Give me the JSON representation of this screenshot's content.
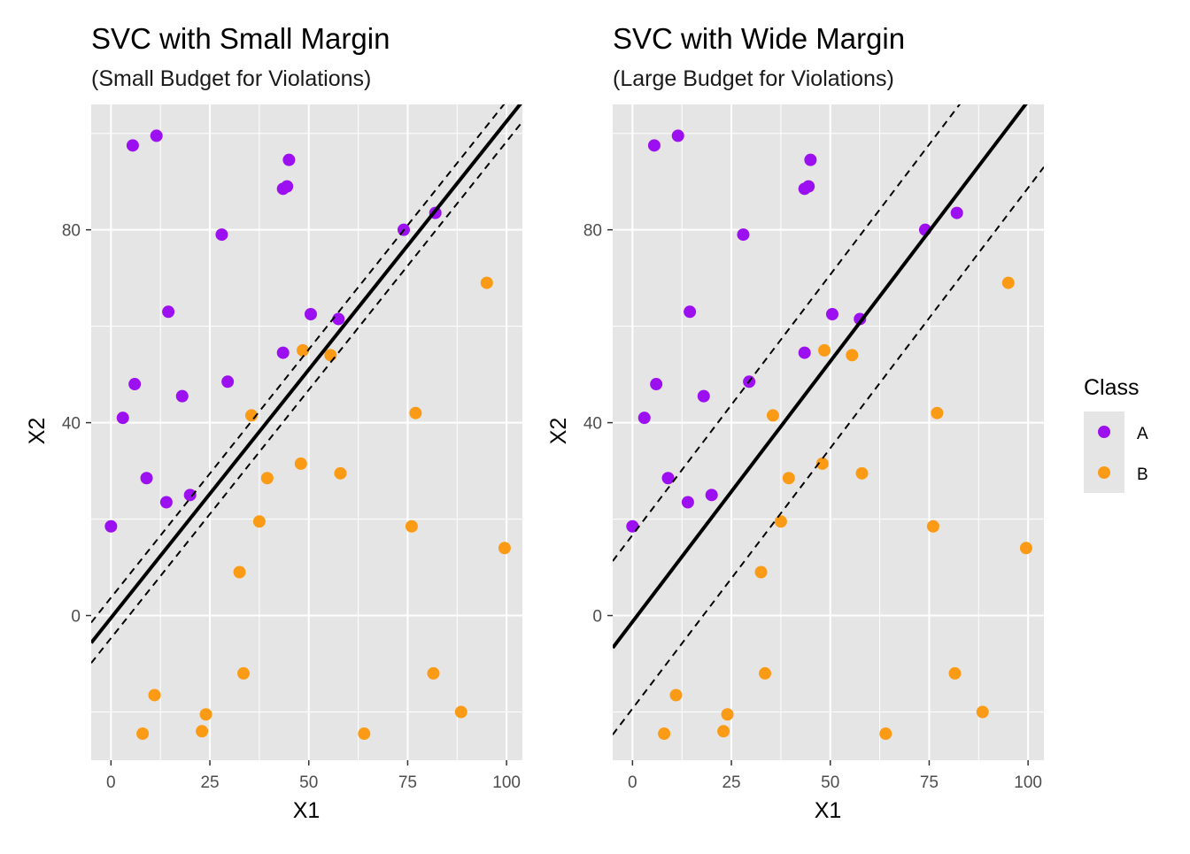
{
  "colors": {
    "panel_bg": "#e5e5e5",
    "grid": "#ffffff",
    "class_A": "#9b0ff0",
    "class_B": "#fb9b15",
    "hyperplane": "#000000",
    "legend_key_bg": "#e5e5e5"
  },
  "legend": {
    "title": "Class",
    "items": [
      {
        "label": "A",
        "color": "#9b0ff0"
      },
      {
        "label": "B",
        "color": "#fb9b15"
      }
    ]
  },
  "chart_data": [
    {
      "type": "scatter",
      "title": "SVC with Small Margin",
      "subtitle": "(Small Budget for Violations)",
      "xlabel": "X1",
      "ylabel": "X2",
      "xlim": [
        -5,
        104
      ],
      "ylim": [
        -30,
        106
      ],
      "xticks": [
        0,
        25,
        50,
        75,
        100
      ],
      "yticks": [
        0,
        40,
        80
      ],
      "grid": true,
      "hyperplane": {
        "slope": 1.03,
        "intercept": -0.5,
        "margin": 4.2
      },
      "series": [
        {
          "name": "A",
          "points": [
            [
              5.5,
              97.5
            ],
            [
              11.5,
              99.5
            ],
            [
              28,
              79
            ],
            [
              43.5,
              88.5
            ],
            [
              44.5,
              89
            ],
            [
              45,
              94.5
            ],
            [
              74,
              80
            ],
            [
              82,
              83.5
            ],
            [
              14.5,
              63
            ],
            [
              50.5,
              62.5
            ],
            [
              57.5,
              61.5
            ],
            [
              43.5,
              54.5
            ],
            [
              6,
              48
            ],
            [
              29.5,
              48.5
            ],
            [
              18,
              45.5
            ],
            [
              3,
              41
            ],
            [
              9,
              28.5
            ],
            [
              14,
              23.5
            ],
            [
              20,
              25
            ],
            [
              0,
              18.5
            ]
          ]
        },
        {
          "name": "B",
          "points": [
            [
              95,
              69
            ],
            [
              48.5,
              55
            ],
            [
              55.5,
              54
            ],
            [
              35.5,
              41.5
            ],
            [
              77,
              42
            ],
            [
              48,
              31.5
            ],
            [
              58,
              29.5
            ],
            [
              39.5,
              28.5
            ],
            [
              37.5,
              19.5
            ],
            [
              76,
              18.5
            ],
            [
              99.5,
              14
            ],
            [
              32.5,
              9
            ],
            [
              33.5,
              -12
            ],
            [
              81.5,
              -12
            ],
            [
              11,
              -16.5
            ],
            [
              24,
              -20.5
            ],
            [
              88.5,
              -20
            ],
            [
              8,
              -24.5
            ],
            [
              23,
              -24
            ],
            [
              64,
              -24.5
            ]
          ]
        }
      ]
    },
    {
      "type": "scatter",
      "title": "SVC with Wide Margin",
      "subtitle": "(Large Budget for Violations)",
      "xlabel": "X1",
      "ylabel": "X2",
      "xlim": [
        -5,
        104
      ],
      "ylim": [
        -30,
        106
      ],
      "xticks": [
        0,
        25,
        50,
        75,
        100
      ],
      "yticks": [
        0,
        40,
        80
      ],
      "grid": true,
      "hyperplane": {
        "slope": 1.08,
        "intercept": -1.3,
        "margin": 18
      },
      "series": [
        {
          "name": "A",
          "points": [
            [
              5.5,
              97.5
            ],
            [
              11.5,
              99.5
            ],
            [
              28,
              79
            ],
            [
              43.5,
              88.5
            ],
            [
              44.5,
              89
            ],
            [
              45,
              94.5
            ],
            [
              74,
              80
            ],
            [
              82,
              83.5
            ],
            [
              14.5,
              63
            ],
            [
              50.5,
              62.5
            ],
            [
              57.5,
              61.5
            ],
            [
              43.5,
              54.5
            ],
            [
              6,
              48
            ],
            [
              29.5,
              48.5
            ],
            [
              18,
              45.5
            ],
            [
              3,
              41
            ],
            [
              9,
              28.5
            ],
            [
              14,
              23.5
            ],
            [
              20,
              25
            ],
            [
              0,
              18.5
            ]
          ]
        },
        {
          "name": "B",
          "points": [
            [
              95,
              69
            ],
            [
              48.5,
              55
            ],
            [
              55.5,
              54
            ],
            [
              35.5,
              41.5
            ],
            [
              77,
              42
            ],
            [
              48,
              31.5
            ],
            [
              58,
              29.5
            ],
            [
              39.5,
              28.5
            ],
            [
              37.5,
              19.5
            ],
            [
              76,
              18.5
            ],
            [
              99.5,
              14
            ],
            [
              32.5,
              9
            ],
            [
              33.5,
              -12
            ],
            [
              81.5,
              -12
            ],
            [
              11,
              -16.5
            ],
            [
              24,
              -20.5
            ],
            [
              88.5,
              -20
            ],
            [
              8,
              -24.5
            ],
            [
              23,
              -24
            ],
            [
              64,
              -24.5
            ]
          ]
        }
      ]
    }
  ]
}
